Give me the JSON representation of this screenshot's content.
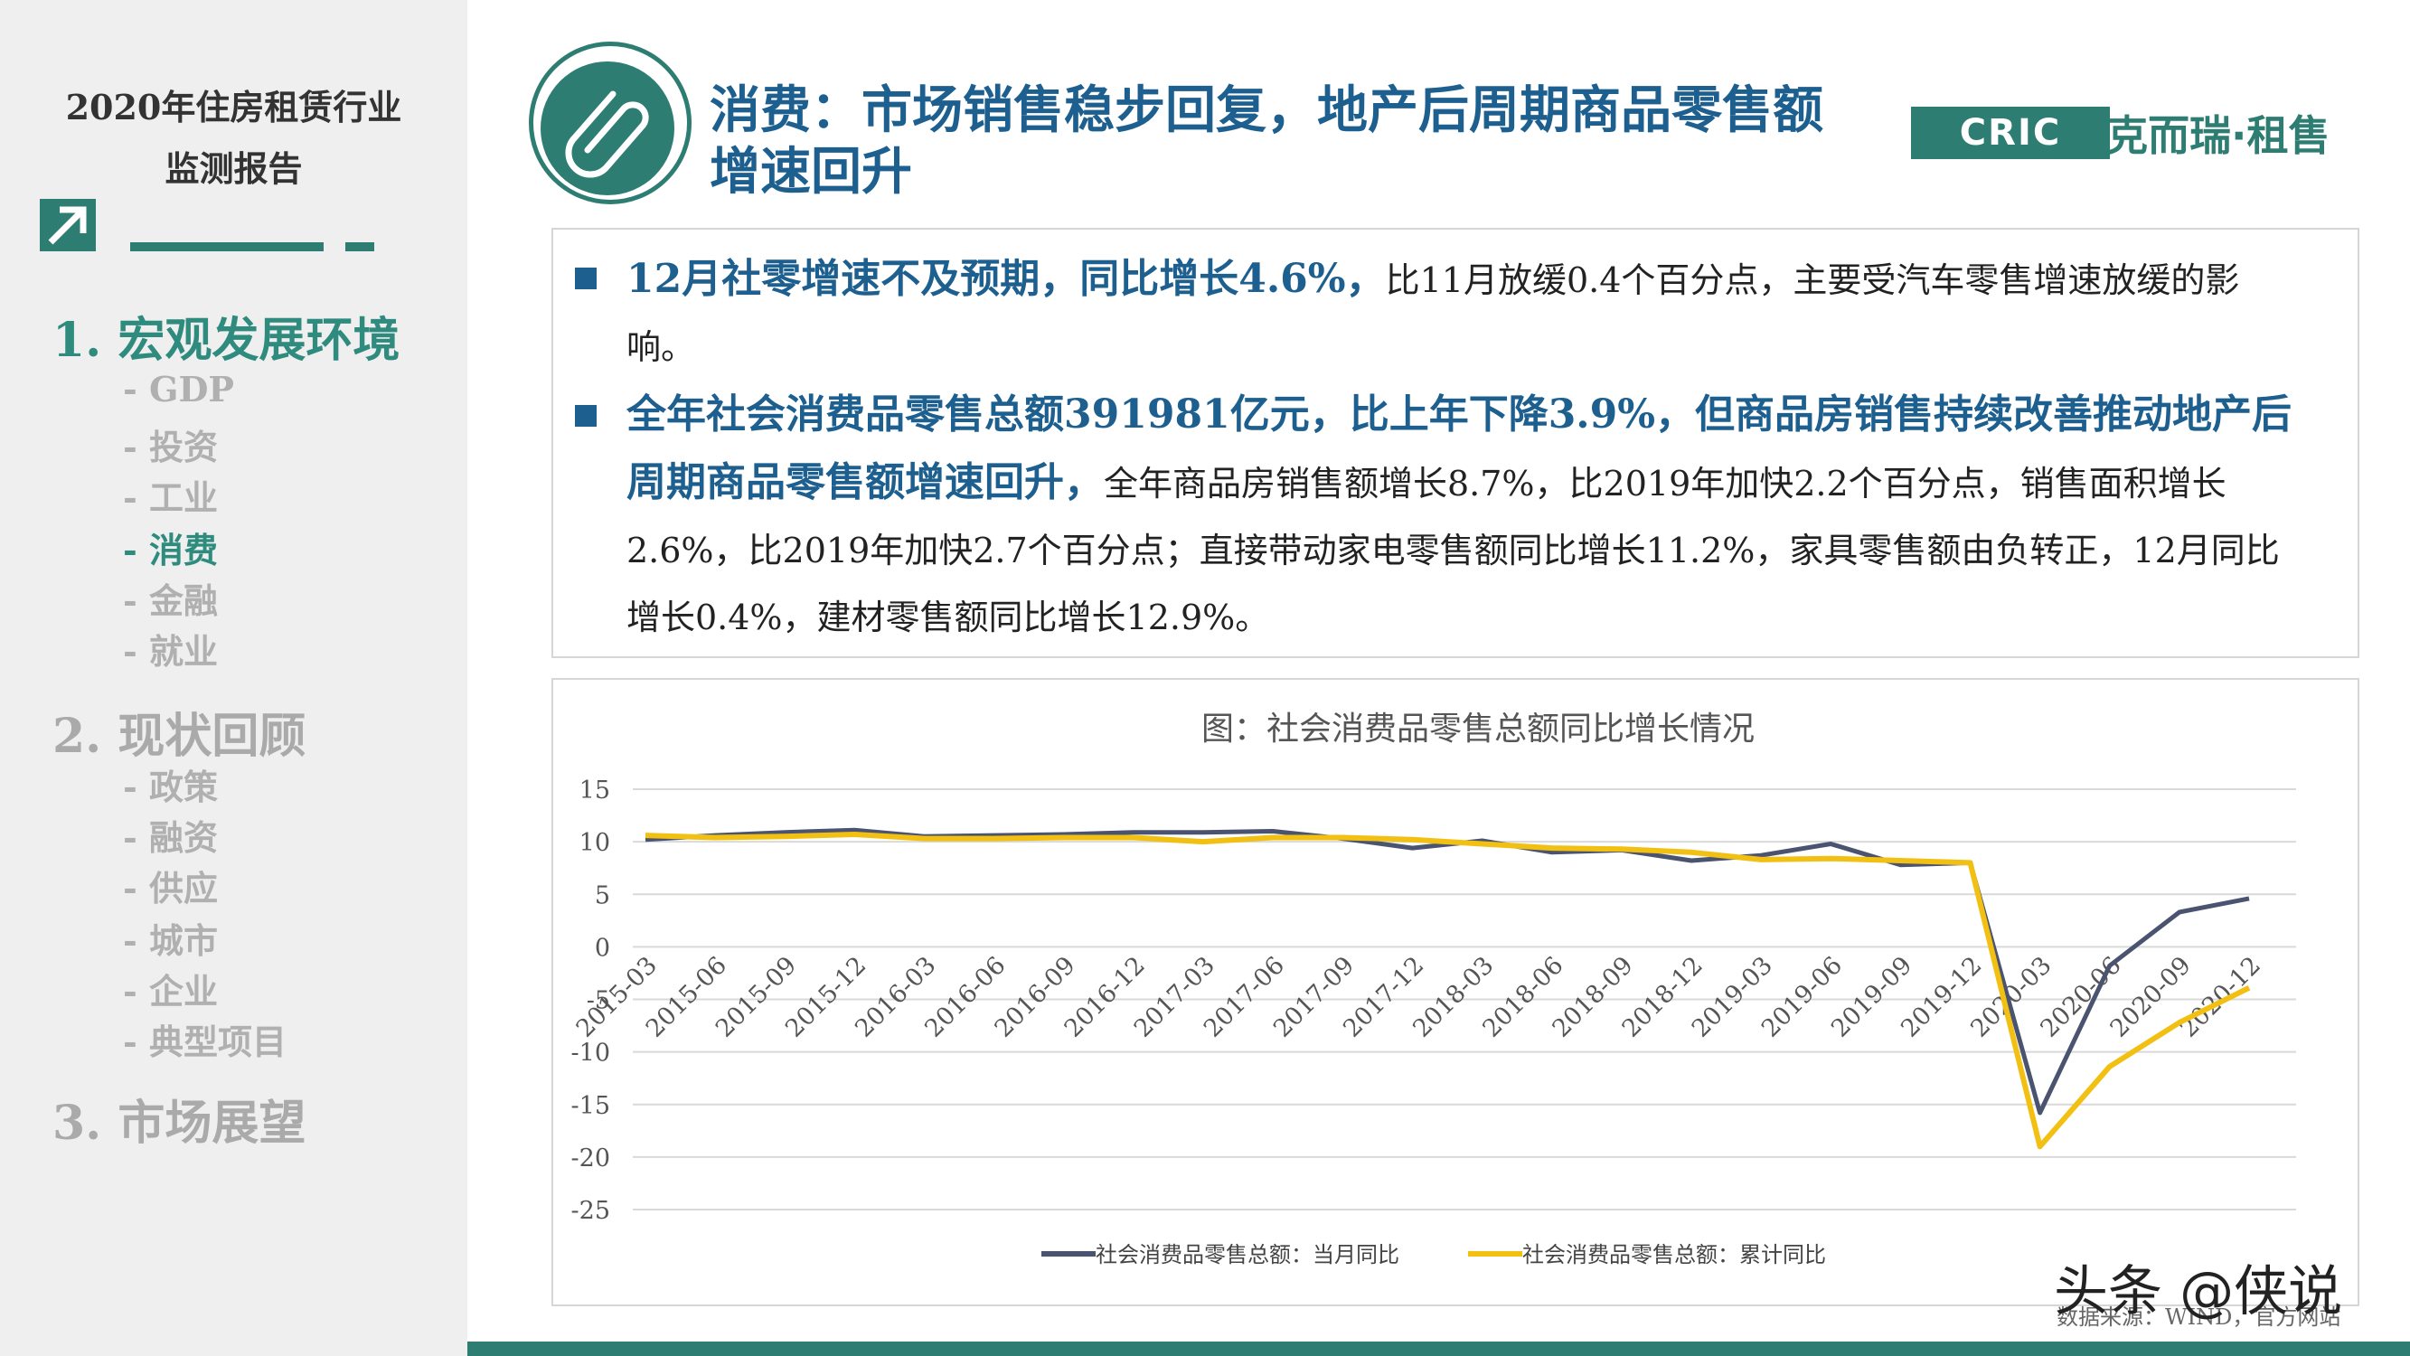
{
  "sidebar": {
    "report_title_line1": "2020年住房租赁行业",
    "report_title_line2": "监测报告",
    "sections": [
      {
        "label": "1. 宏观发展环境",
        "subs": [
          "- GDP",
          "- 投资",
          "- 工业",
          "- 消费",
          "- 金融",
          "- 就业"
        ]
      },
      {
        "label": "2. 现状回顾",
        "subs": [
          "- 政策",
          "- 融资",
          "- 供应",
          "- 城市",
          "- 企业",
          "- 典型项目"
        ]
      },
      {
        "label": "3. 市场展望",
        "subs": []
      }
    ],
    "active_sub": "- 消费"
  },
  "header": {
    "title_line1": "消费：市场销售稳步回复，地产后周期商品零售额",
    "title_line2": "增速回升",
    "logo_en": "CRIC",
    "logo_cn": "克而瑞·租售"
  },
  "bullets": [
    {
      "highlight": "12月社零增速不及预期，同比增长4.6%，",
      "rest": "比11月放缓0.4个百分点，主要受汽车零售增速放缓的影响。"
    },
    {
      "highlight": "全年社会消费品零售总额391981亿元，比上年下降3.9%，但商品房销售持续改善推动地产后周期商品零售额增速回升，",
      "rest": "全年商品房销售额增长8.7%，比2019年加快2.2个百分点，销售面积增长2.6%，比2019年加快2.7个百分点；直接带动家电零售额同比增长11.2%，家具零售额由负转正，12月同比增长0.4%，建材零售额同比增长12.9%。"
    }
  ],
  "footer": {
    "source": "数据来源：WIND，官方网站",
    "watermark": "头条 @侠说"
  },
  "colors": {
    "accent": "#2e7d73",
    "title_blue": "#1d5f8f",
    "series_monthly": "#4a5470",
    "series_cumulative": "#f2c012"
  },
  "chart_data": {
    "type": "line",
    "title": "图：社会消费品零售总额同比增长情况",
    "xlabel": "",
    "ylabel": "",
    "ylim": [
      -25,
      15
    ],
    "yticks": [
      15,
      10,
      5,
      0,
      -5,
      -10,
      -15,
      -20,
      -25
    ],
    "grid": true,
    "legend": "bottom",
    "x": [
      "2015-03",
      "2015-06",
      "2015-09",
      "2015-12",
      "2016-03",
      "2016-06",
      "2016-09",
      "2016-12",
      "2017-03",
      "2017-06",
      "2017-09",
      "2017-12",
      "2018-03",
      "2018-06",
      "2018-09",
      "2018-12",
      "2019-03",
      "2019-06",
      "2019-09",
      "2019-12",
      "2020-03",
      "2020-06",
      "2020-09",
      "2020-12"
    ],
    "series": [
      {
        "name": "社会消费品零售总额：当月同比",
        "values": [
          10.2,
          10.6,
          10.9,
          11.1,
          10.5,
          10.6,
          10.7,
          10.9,
          10.9,
          11.0,
          10.3,
          9.4,
          10.1,
          9.0,
          9.2,
          8.2,
          8.7,
          9.8,
          7.8,
          8.0,
          -15.8,
          -1.8,
          3.3,
          4.6
        ]
      },
      {
        "name": "社会消费品零售总额：累计同比",
        "values": [
          10.6,
          10.4,
          10.5,
          10.7,
          10.3,
          10.3,
          10.4,
          10.4,
          10.0,
          10.4,
          10.4,
          10.2,
          9.8,
          9.4,
          9.3,
          9.0,
          8.3,
          8.4,
          8.2,
          8.0,
          -19.0,
          -11.4,
          -7.2,
          -3.9
        ]
      }
    ]
  }
}
